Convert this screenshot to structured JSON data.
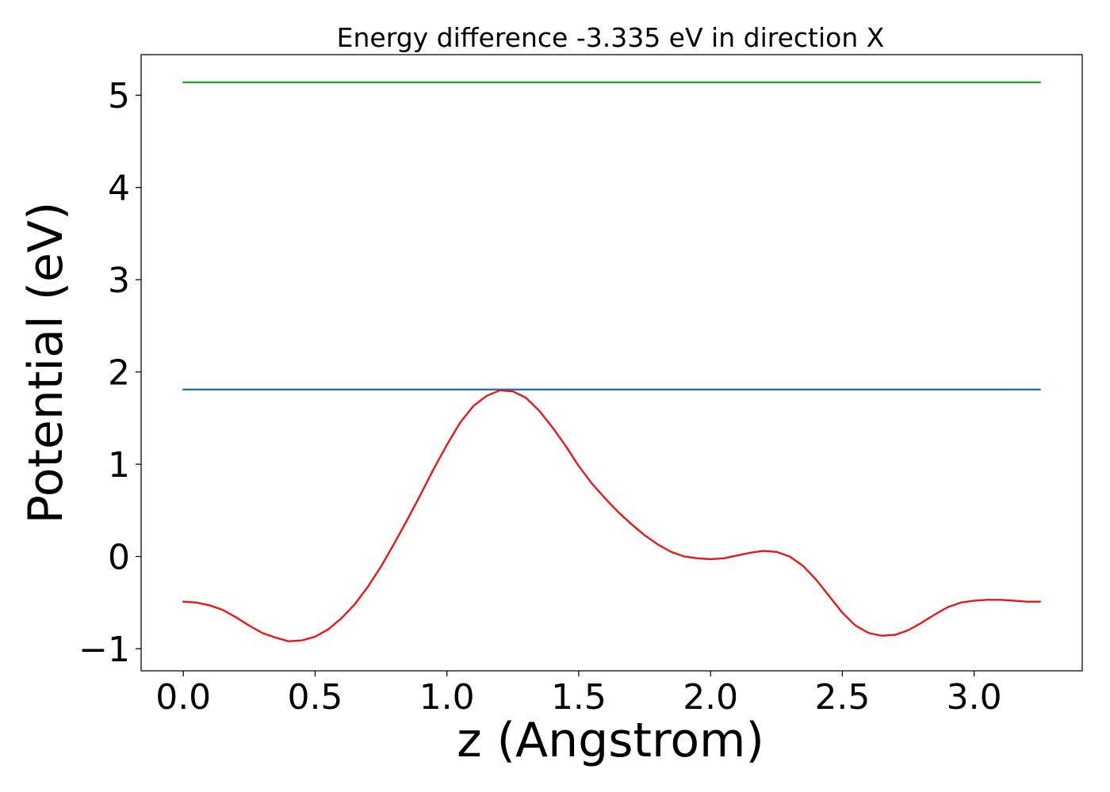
{
  "chart_data": {
    "type": "line",
    "title": "Energy difference -3.335 eV in direction X",
    "xlabel": "z (Angstrom)",
    "ylabel": "Potential (eV)",
    "xlim": [
      -0.16,
      3.41
    ],
    "ylim": [
      -1.24,
      5.44
    ],
    "xticks": [
      0.0,
      0.5,
      1.0,
      1.5,
      2.0,
      2.5,
      3.0
    ],
    "xtick_labels": [
      "0.0",
      "0.5",
      "1.0",
      "1.5",
      "2.0",
      "2.5",
      "3.0"
    ],
    "yticks": [
      -1,
      0,
      1,
      2,
      3,
      4,
      5
    ],
    "ytick_labels": [
      "−1",
      "0",
      "1",
      "2",
      "3",
      "4",
      "5"
    ],
    "grid": false,
    "series": [
      {
        "color": "#2ca02c",
        "x": [
          0.0,
          3.25
        ],
        "y": [
          5.14,
          5.14
        ]
      },
      {
        "color": "#1f77b4",
        "x": [
          0.0,
          3.25
        ],
        "y": [
          1.81,
          1.81
        ]
      },
      {
        "color": "#e31a1c",
        "x": [
          0.0,
          0.05,
          0.1,
          0.15,
          0.2,
          0.25,
          0.3,
          0.35,
          0.4,
          0.45,
          0.5,
          0.55,
          0.6,
          0.65,
          0.7,
          0.75,
          0.8,
          0.85,
          0.9,
          0.95,
          1.0,
          1.05,
          1.1,
          1.15,
          1.2,
          1.25,
          1.3,
          1.35,
          1.4,
          1.45,
          1.5,
          1.55,
          1.6,
          1.65,
          1.7,
          1.75,
          1.8,
          1.85,
          1.9,
          1.95,
          2.0,
          2.05,
          2.1,
          2.15,
          2.2,
          2.25,
          2.3,
          2.35,
          2.4,
          2.45,
          2.5,
          2.55,
          2.6,
          2.65,
          2.7,
          2.75,
          2.8,
          2.85,
          2.9,
          2.95,
          3.0,
          3.05,
          3.1,
          3.15,
          3.2,
          3.25
        ],
        "y": [
          -0.49,
          -0.5,
          -0.53,
          -0.58,
          -0.66,
          -0.75,
          -0.83,
          -0.88,
          -0.92,
          -0.91,
          -0.87,
          -0.79,
          -0.67,
          -0.52,
          -0.33,
          -0.11,
          0.14,
          0.4,
          0.67,
          0.95,
          1.21,
          1.45,
          1.63,
          1.74,
          1.8,
          1.79,
          1.72,
          1.58,
          1.4,
          1.2,
          0.98,
          0.79,
          0.63,
          0.48,
          0.35,
          0.23,
          0.13,
          0.05,
          0.0,
          -0.02,
          -0.03,
          -0.02,
          0.01,
          0.04,
          0.06,
          0.05,
          0.0,
          -0.1,
          -0.25,
          -0.43,
          -0.61,
          -0.75,
          -0.83,
          -0.86,
          -0.85,
          -0.8,
          -0.72,
          -0.63,
          -0.55,
          -0.5,
          -0.48,
          -0.47,
          -0.47,
          -0.48,
          -0.49,
          -0.49
        ]
      }
    ]
  }
}
